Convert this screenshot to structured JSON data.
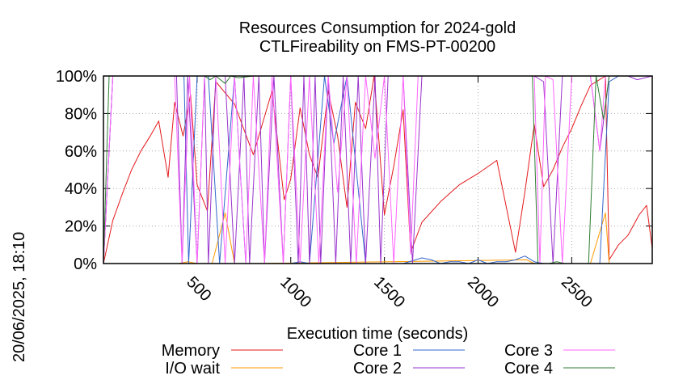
{
  "chart_data": {
    "type": "line",
    "title": "Resources Consumption for 2024-gold",
    "subtitle": "CTLFireability on FMS-PT-00200",
    "xlabel": "Execution time (seconds)",
    "ylabel": "",
    "side_label": "20/06/2025, 18:10",
    "xlim": [
      0,
      2930
    ],
    "ylim": [
      0,
      100
    ],
    "x_ticks": [
      500,
      1000,
      1500,
      2000,
      2500
    ],
    "y_ticks": [
      0,
      20,
      40,
      60,
      80,
      100
    ],
    "y_tick_labels": [
      "0%",
      "20%",
      "40%",
      "60%",
      "80%",
      "100%"
    ],
    "grid": true,
    "legend_position": "bottom",
    "series": [
      {
        "name": "Memory",
        "color": "#e41a1c",
        "x": [
          0,
          50,
          100,
          150,
          200,
          250,
          295,
          345,
          380,
          425,
          465,
          500,
          555,
          600,
          700,
          800,
          900,
          965,
          1000,
          1050,
          1100,
          1145,
          1200,
          1250,
          1300,
          1345,
          1400,
          1445,
          1500,
          1550,
          1600,
          1640,
          1700,
          1800,
          1900,
          2000,
          2100,
          2200,
          2250,
          2300,
          2350,
          2400,
          2450,
          2500,
          2550,
          2600,
          2680,
          2700,
          2750,
          2800,
          2860,
          2900,
          2930
        ],
        "y": [
          0,
          23,
          37,
          50,
          60,
          68,
          76,
          46,
          86,
          68,
          90,
          42,
          28,
          97,
          85,
          58,
          92,
          34,
          45,
          83,
          58,
          46,
          92,
          68,
          30,
          86,
          72,
          100,
          26,
          52,
          82,
          6,
          22,
          33,
          42,
          48,
          55,
          6,
          38,
          74,
          41,
          50,
          62,
          72,
          84,
          95,
          100,
          2,
          10,
          15,
          26,
          31,
          8
        ]
      },
      {
        "name": "I/O wait",
        "color": "#ff9900",
        "x": [
          0,
          400,
          450,
          500,
          580,
          650,
          700,
          800,
          2260,
          2300,
          2600,
          2680,
          2700,
          2930
        ],
        "y": [
          0,
          0,
          1,
          0,
          0,
          27,
          0,
          0,
          2,
          0,
          0,
          27,
          0,
          0
        ]
      },
      {
        "name": "Core 1",
        "color": "#3366cc",
        "x": [
          0,
          50,
          430,
          455,
          500,
          560,
          620,
          700,
          760,
          800,
          830,
          1000,
          1050,
          1100,
          1180,
          1230,
          1300,
          1400,
          1600,
          1700,
          1750,
          1800,
          1850,
          1900,
          1950,
          2000,
          2050,
          2100,
          2150,
          2200,
          2250,
          2300,
          2350,
          2400,
          2450,
          2600,
          2650,
          2700,
          2750,
          2800,
          2930
        ],
        "y": [
          0,
          100,
          100,
          0,
          100,
          100,
          0,
          100,
          0,
          0,
          0,
          0,
          1,
          0,
          100,
          64,
          100,
          0,
          0,
          3,
          2,
          0,
          1,
          1,
          0,
          2,
          0,
          1,
          1,
          2,
          4,
          1,
          0,
          0,
          0,
          0,
          0,
          97,
          100,
          100,
          100
        ]
      },
      {
        "name": "Core 2",
        "color": "#9933cc",
        "x": [
          0,
          50,
          390,
          420,
          450,
          500,
          540,
          560,
          600,
          650,
          700,
          750,
          780,
          830,
          860,
          910,
          960,
          1000,
          1040,
          1070,
          1100,
          1130,
          1160,
          1200,
          1240,
          1280,
          1320,
          1360,
          1400,
          1450,
          1480,
          1520,
          1600,
          1650,
          1700,
          2300,
          2350,
          2400,
          2450,
          2500,
          2600,
          2650,
          2700,
          2750,
          2800,
          2850,
          2930
        ],
        "y": [
          0,
          100,
          100,
          0,
          100,
          0,
          100,
          0,
          100,
          100,
          0,
          100,
          0,
          100,
          0,
          100,
          0,
          100,
          0,
          100,
          0,
          100,
          0,
          100,
          0,
          100,
          0,
          100,
          0,
          100,
          0,
          100,
          100,
          0,
          100,
          100,
          97,
          0,
          100,
          100,
          100,
          60,
          100,
          100,
          100,
          98,
          100
        ]
      },
      {
        "name": "Core 3",
        "color": "#ff66ff",
        "x": [
          0,
          50,
          380,
          420,
          460,
          500,
          540,
          600,
          650,
          700,
          760,
          800,
          860,
          900,
          960,
          1000,
          1050,
          1100,
          1150,
          1200,
          1250,
          1300,
          1350,
          1400,
          1450,
          1500,
          1550,
          1600,
          1640,
          1680,
          2300,
          2330,
          2360,
          2400,
          2450,
          2500,
          2550,
          2600,
          2650,
          2680,
          2700,
          2750,
          2930
        ],
        "y": [
          0,
          100,
          100,
          0,
          100,
          0,
          100,
          100,
          0,
          100,
          0,
          100,
          0,
          100,
          0,
          100,
          0,
          100,
          0,
          100,
          38,
          100,
          0,
          100,
          56,
          100,
          0,
          100,
          5,
          100,
          100,
          0,
          100,
          98,
          0,
          100,
          100,
          100,
          60,
          100,
          100,
          100,
          100
        ]
      },
      {
        "name": "Core 4",
        "color": "#2e7d32",
        "x": [
          0,
          30,
          60,
          540,
          570,
          600,
          650,
          680,
          720,
          800,
          1000,
          1500,
          2200,
          2290,
          2320,
          2380,
          2420,
          2460,
          2540,
          2590,
          2630,
          2670,
          2700,
          2750,
          2930
        ],
        "y": [
          0,
          100,
          100,
          100,
          98,
          100,
          96,
          100,
          99,
          100,
          100,
          100,
          100,
          100,
          0,
          0,
          1,
          0,
          0,
          0,
          100,
          77,
          100,
          100,
          100
        ]
      }
    ]
  }
}
